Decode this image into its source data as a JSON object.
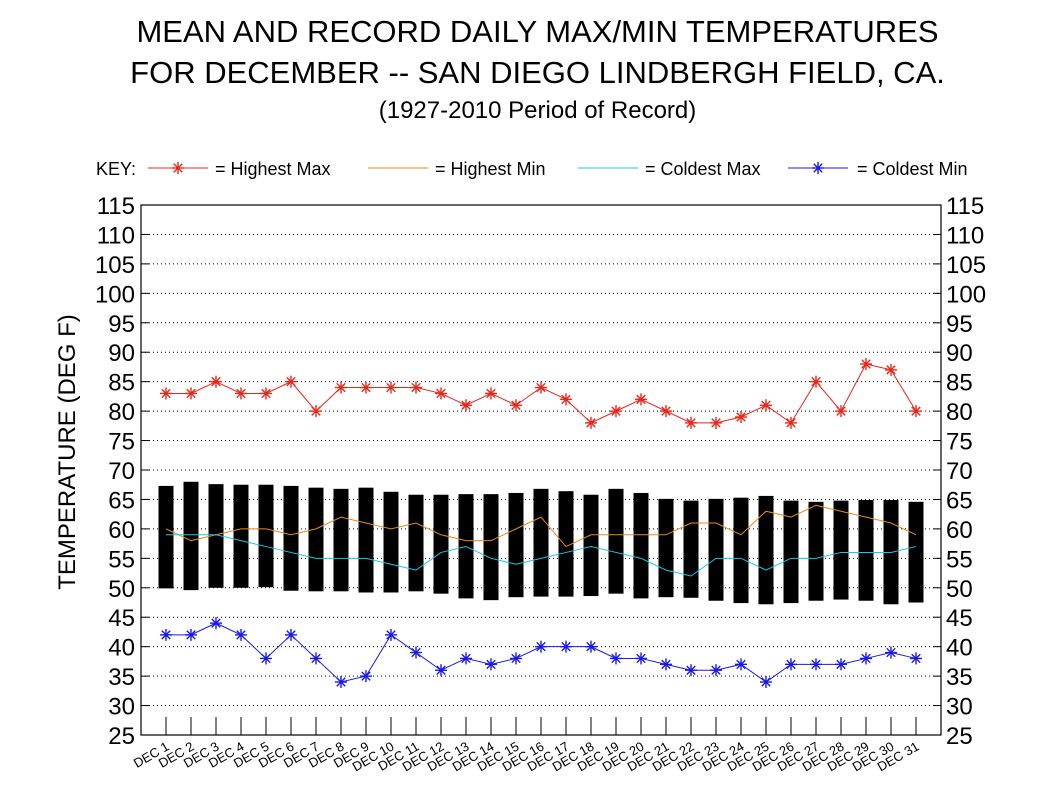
{
  "title_line1": "MEAN AND RECORD DAILY MAX/MIN TEMPERATURES",
  "title_line2": "FOR DECEMBER -- SAN DIEGO LINDBERGH FIELD, CA.",
  "subtitle": "(1927-2010 Period of Record)",
  "key": {
    "prefix": "KEY:",
    "items": [
      {
        "label": "= Highest Max",
        "color": "#e8261a",
        "marker": "asterisk"
      },
      {
        "label": "= Highest Min",
        "color": "#e88a1a",
        "marker": "none"
      },
      {
        "label": "= Coldest Max",
        "color": "#18c8e8",
        "marker": "none"
      },
      {
        "label": "= Coldest Min",
        "color": "#1a1ae8",
        "marker": "asterisk"
      }
    ]
  },
  "chart_data": {
    "type": "line",
    "ylabel": "TEMPERATURE (DEG F)",
    "ylim": [
      25,
      115
    ],
    "yticks": [
      25,
      30,
      35,
      40,
      45,
      50,
      55,
      60,
      65,
      70,
      75,
      80,
      85,
      90,
      95,
      100,
      105,
      110,
      115
    ],
    "grid": "horizontal dotted",
    "categories": [
      "DEC 1",
      "DEC 2",
      "DEC 3",
      "DEC 4",
      "DEC 5",
      "DEC 6",
      "DEC 7",
      "DEC 8",
      "DEC 9",
      "DEC 10",
      "DEC 11",
      "DEC 12",
      "DEC 13",
      "DEC 14",
      "DEC 15",
      "DEC 16",
      "DEC 17",
      "DEC 18",
      "DEC 19",
      "DEC 20",
      "DEC 21",
      "DEC 22",
      "DEC 23",
      "DEC 24",
      "DEC 25",
      "DEC 26",
      "DEC 27",
      "DEC 28",
      "DEC 29",
      "DEC 30",
      "DEC 31"
    ],
    "mean_bars": {
      "color": "#000000",
      "mean_max": [
        67.3,
        68.0,
        67.6,
        67.5,
        67.5,
        67.3,
        67.0,
        66.8,
        67.0,
        66.3,
        65.8,
        65.8,
        65.9,
        65.9,
        66.1,
        66.8,
        66.4,
        65.8,
        66.8,
        66.1,
        65.1,
        64.8,
        65.1,
        65.3,
        65.6,
        64.8,
        64.6,
        64.8,
        64.9,
        64.9,
        64.6
      ],
      "mean_min": [
        49.9,
        49.6,
        50.0,
        50.0,
        50.1,
        49.5,
        49.4,
        49.4,
        49.2,
        49.2,
        49.4,
        49.0,
        48.2,
        47.9,
        48.4,
        48.5,
        48.5,
        48.6,
        49.0,
        48.2,
        48.4,
        48.3,
        47.8,
        47.4,
        47.2,
        47.4,
        47.8,
        48.0,
        47.8,
        47.2,
        47.5
      ]
    },
    "series": [
      {
        "name": "Highest Max",
        "color": "#e8261a",
        "marker": "asterisk",
        "values": [
          83,
          83,
          85,
          83,
          83,
          85,
          80,
          84,
          84,
          84,
          84,
          83,
          81,
          83,
          81,
          84,
          82,
          78,
          80,
          82,
          80,
          78,
          78,
          79,
          81,
          78,
          85,
          80,
          88,
          87,
          80
        ]
      },
      {
        "name": "Highest Min",
        "color": "#e88a1a",
        "marker": "none",
        "values": [
          60,
          58,
          59,
          60,
          60,
          59,
          60,
          62,
          61,
          60,
          61,
          59,
          58,
          58,
          60,
          62,
          57,
          59,
          59,
          59,
          59,
          61,
          61,
          59,
          63,
          62,
          64,
          63,
          62,
          61,
          59
        ]
      },
      {
        "name": "Coldest Max",
        "color": "#18c8e8",
        "marker": "none",
        "values": [
          59,
          59,
          59,
          58,
          57,
          56,
          55,
          55,
          55,
          54,
          53,
          56,
          57,
          55,
          54,
          55,
          56,
          57,
          56,
          55,
          53,
          52,
          55,
          55,
          53,
          55,
          55,
          56,
          56,
          56,
          57
        ]
      },
      {
        "name": "Coldest Min",
        "color": "#1a1ae8",
        "marker": "asterisk",
        "values": [
          42,
          42,
          44,
          42,
          38,
          42,
          38,
          34,
          35,
          42,
          39,
          36,
          38,
          37,
          38,
          40,
          40,
          40,
          38,
          38,
          37,
          36,
          36,
          37,
          34,
          37,
          37,
          37,
          38,
          39,
          38
        ]
      }
    ]
  }
}
